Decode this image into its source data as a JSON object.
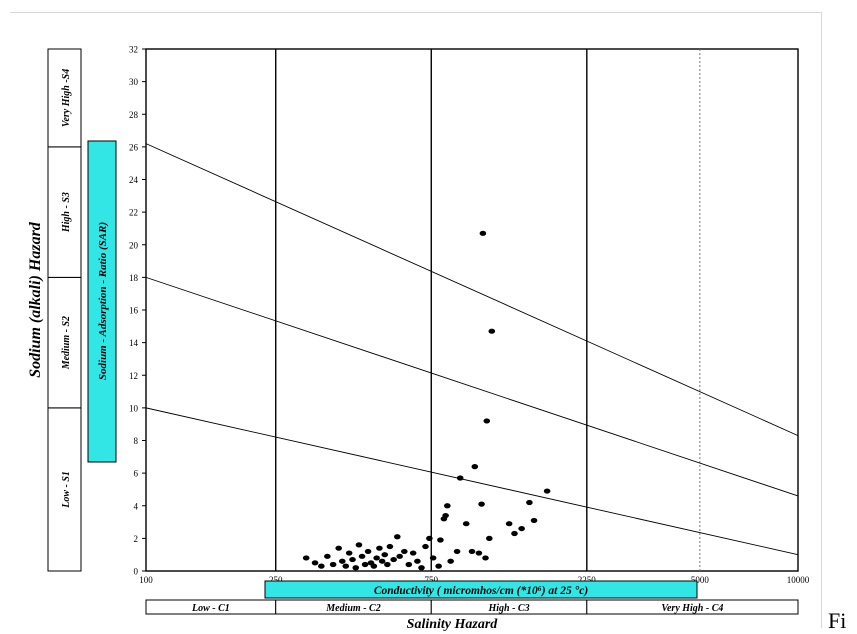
{
  "fig_suffix": "Fi",
  "chart_data": {
    "type": "scatter",
    "title": "",
    "xlabel": "Conductivity ( micromhos/cm (*10⁶) at 25 °c)",
    "ylabel": "Sodium - Adsorption - Ratio (SAR)",
    "outer_ylabel": "Sodium (alkali) Hazard",
    "outer_xlabel": "Salinity Hazard",
    "ylim": [
      0,
      32
    ],
    "y_ticks": [
      "0",
      "2",
      "4",
      "6",
      "8",
      "10",
      "12",
      "14",
      "16",
      "18",
      "20",
      "22",
      "24",
      "26",
      "28",
      "30",
      "32"
    ],
    "x_scale": "log",
    "xlim": [
      100,
      10000
    ],
    "x_ticks": [
      "100",
      "250",
      "750",
      "2250",
      "5000",
      "10000"
    ],
    "x_tick_values": [
      100,
      250,
      750,
      2250,
      5000,
      10000
    ],
    "vertical_lines": [
      250,
      750,
      2250
    ],
    "dotted_line": 5000,
    "class_lines": [
      {
        "from": [
          100,
          10
        ],
        "to": [
          10000,
          1
        ]
      },
      {
        "from": [
          100,
          18
        ],
        "to": [
          10000,
          4.6
        ]
      },
      {
        "from": [
          100,
          26.2
        ],
        "to": [
          10000,
          8.3
        ]
      }
    ],
    "sodium_classes": [
      "Low - S1",
      "Medium - S2",
      "High - S3",
      "Very High -S4"
    ],
    "salinity_classes": [
      "Low - C1",
      "Medium - C2",
      "High - C3",
      "Very High - C4"
    ],
    "points": [
      [
        310,
        0.8
      ],
      [
        330,
        0.5
      ],
      [
        345,
        0.3
      ],
      [
        360,
        0.9
      ],
      [
        375,
        0.4
      ],
      [
        390,
        1.4
      ],
      [
        400,
        0.6
      ],
      [
        410,
        0.3
      ],
      [
        420,
        1.1
      ],
      [
        430,
        0.7
      ],
      [
        440,
        0.2
      ],
      [
        450,
        1.6
      ],
      [
        460,
        0.9
      ],
      [
        470,
        0.4
      ],
      [
        480,
        1.2
      ],
      [
        490,
        0.5
      ],
      [
        500,
        0.3
      ],
      [
        510,
        0.8
      ],
      [
        520,
        1.4
      ],
      [
        530,
        0.6
      ],
      [
        540,
        1.0
      ],
      [
        550,
        0.4
      ],
      [
        560,
        1.5
      ],
      [
        575,
        0.7
      ],
      [
        590,
        2.1
      ],
      [
        600,
        0.9
      ],
      [
        620,
        1.2
      ],
      [
        640,
        0.4
      ],
      [
        660,
        1.1
      ],
      [
        680,
        0.6
      ],
      [
        700,
        0.2
      ],
      [
        720,
        1.5
      ],
      [
        740,
        2.0
      ],
      [
        760,
        0.8
      ],
      [
        790,
        0.3
      ],
      [
        800,
        1.9
      ],
      [
        820,
        3.2
      ],
      [
        830,
        3.4
      ],
      [
        840,
        4.0
      ],
      [
        860,
        0.6
      ],
      [
        900,
        1.2
      ],
      [
        920,
        5.7
      ],
      [
        960,
        2.9
      ],
      [
        1000,
        1.2
      ],
      [
        1020,
        6.4
      ],
      [
        1050,
        1.1
      ],
      [
        1070,
        4.1
      ],
      [
        1080,
        20.7
      ],
      [
        1100,
        0.8
      ],
      [
        1110,
        9.2
      ],
      [
        1130,
        2.0
      ],
      [
        1150,
        14.7
      ],
      [
        1300,
        2.9
      ],
      [
        1350,
        2.3
      ],
      [
        1420,
        2.6
      ],
      [
        1500,
        4.2
      ],
      [
        1550,
        3.1
      ],
      [
        1700,
        4.9
      ]
    ]
  }
}
